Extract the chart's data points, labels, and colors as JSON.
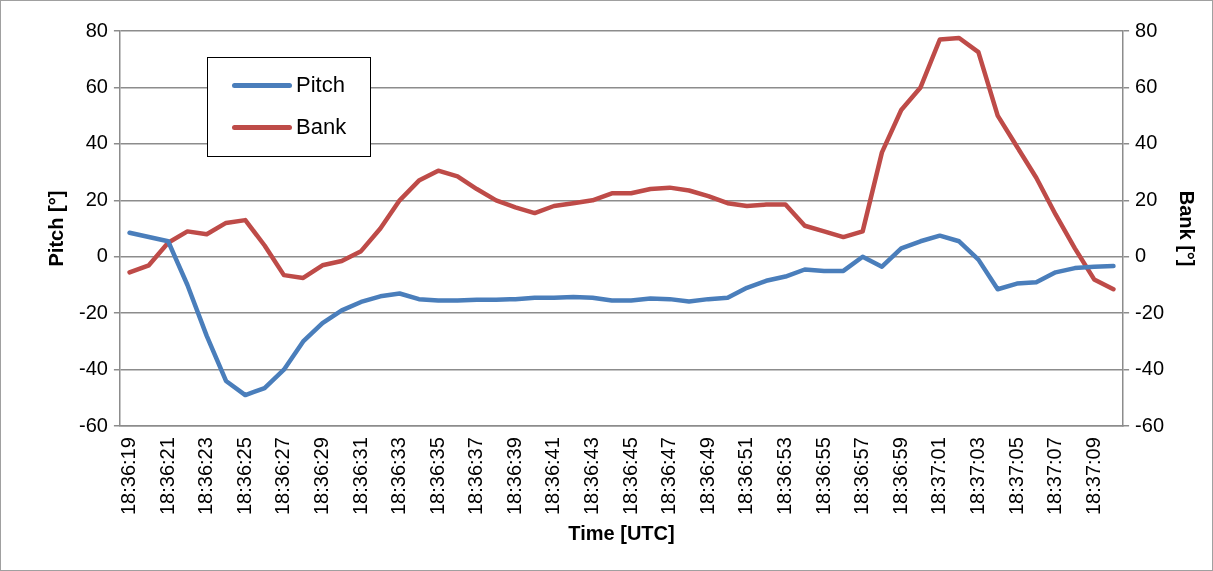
{
  "chart_data": {
    "type": "line",
    "xlabel": "Time [UTC]",
    "ylabel": "Pitch [°]",
    "y2label": "Bank [°]",
    "categories": [
      "18:36:19",
      null,
      "18:36:21",
      null,
      "18:36:23",
      null,
      "18:36:25",
      null,
      "18:36:27",
      null,
      "18:36:29",
      null,
      "18:36:31",
      null,
      "18:36:33",
      null,
      "18:36:35",
      null,
      "18:36:37",
      null,
      "18:36:39",
      null,
      "18:36:41",
      null,
      "18:36:43",
      null,
      "18:36:45",
      null,
      "18:36:47",
      null,
      "18:36:49",
      null,
      "18:36:51",
      null,
      "18:36:53",
      null,
      "18:36:55",
      null,
      "18:36:57",
      null,
      "18:36:59",
      null,
      "18:37:01",
      null,
      "18:37:03",
      null,
      "18:37:05",
      null,
      "18:37:07",
      null,
      "18:37:09",
      null
    ],
    "series": [
      {
        "name": "Pitch",
        "color": "#4a7ebb",
        "values": [
          8.5,
          7,
          5.5,
          -10,
          -28,
          -44,
          -49,
          -46.5,
          -40,
          -30,
          -23.5,
          -19,
          -16,
          -14,
          -13,
          -15,
          -15.5,
          -15.5,
          -15.2,
          -15.2,
          -15,
          -14.5,
          -14.5,
          -14.2,
          -14.5,
          -15.5,
          -15.5,
          -14.8,
          -15,
          -15.8,
          -15,
          -14.5,
          -11,
          -8.5,
          -7,
          -4.5,
          -5,
          -5,
          0,
          -3.5,
          3,
          5.5,
          7.5,
          5.5,
          -1,
          -11.5,
          -9.5,
          -9,
          -5.5,
          -4,
          -3.5,
          -3.3
        ]
      },
      {
        "name": "Bank",
        "color": "#be4b48",
        "axis": "y2",
        "values": [
          -5.5,
          -3,
          5,
          9,
          8,
          12,
          13,
          4,
          -6.5,
          -7.5,
          -3,
          -1.5,
          2,
          10,
          20,
          27,
          30.5,
          28.5,
          24,
          20,
          17.5,
          15.5,
          18,
          19,
          20,
          22.5,
          22.5,
          24,
          24.5,
          23.5,
          21.5,
          19,
          18,
          18.5,
          18.5,
          11,
          9,
          7,
          9,
          37,
          52,
          60,
          77,
          77.5,
          72.5,
          50,
          39,
          28,
          15,
          3,
          -8,
          -11.5
        ]
      }
    ],
    "ylim": [
      -60,
      80
    ],
    "yticks": [
      -60,
      -40,
      -20,
      0,
      20,
      40,
      60,
      80
    ],
    "y2lim": [
      -60,
      80
    ],
    "y2ticks": [
      -60,
      -40,
      -20,
      0,
      20,
      40,
      60,
      80
    ],
    "grid": "y",
    "legend": "top left",
    "marker": "none",
    "line_style": "solid"
  }
}
